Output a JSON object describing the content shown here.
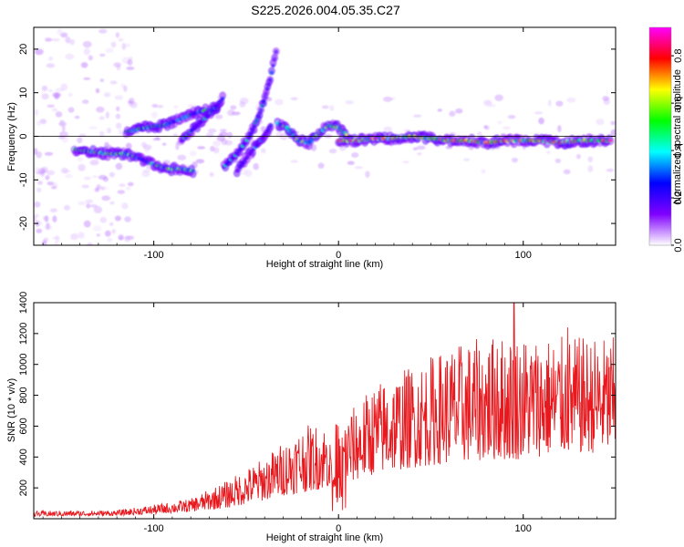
{
  "figure": {
    "title": "S225.2026.004.05.35.C27"
  },
  "chart_data": [
    {
      "type": "heatmap",
      "xlabel": "Height of straight line (km)",
      "ylabel": "Frequency (Hz)",
      "xlim": [
        -165,
        150
      ],
      "ylim": [
        -25,
        25
      ],
      "xticks": [
        -100,
        0,
        100
      ],
      "yticks": [
        -20,
        -10,
        0,
        10,
        20
      ],
      "xtick_labels": [
        "-100",
        "0",
        "100"
      ],
      "ytick_labels": [
        "-20",
        "-10",
        "0",
        "10",
        "20"
      ],
      "colorbar": {
        "label": "Normalized spectral amplitude",
        "range": [
          0,
          0.92
        ],
        "ticks": [
          0.0,
          0.2,
          0.4,
          0.6,
          0.8
        ],
        "tick_labels": [
          "0.0",
          "0.2",
          "0.4",
          "0.6",
          "0.8"
        ],
        "colormap": [
          "#ffffff",
          "#8000ff",
          "#0000ff",
          "#00ffff",
          "#00ff00",
          "#ffff00",
          "#ff0000",
          "#ff00ff"
        ]
      },
      "ridges": [
        {
          "x": [
            -143,
            -135,
            -125,
            -115,
            -108,
            -100,
            -92,
            -85,
            -78
          ],
          "y": [
            -3,
            -3.5,
            -4,
            -4,
            -5,
            -6.5,
            -7.5,
            -7.5,
            -8
          ],
          "intensity": 0.45
        },
        {
          "x": [
            -115,
            -105,
            -95,
            -88,
            -80,
            -72,
            -65
          ],
          "y": [
            1,
            2,
            2.5,
            3.5,
            5,
            6,
            6.5
          ],
          "intensity": 0.4
        },
        {
          "x": [
            -85,
            -78,
            -70,
            -62
          ],
          "y": [
            -1,
            2,
            5,
            9
          ],
          "intensity": 0.3
        },
        {
          "x": [
            -62,
            -55,
            -48,
            -42,
            -37,
            -33
          ],
          "y": [
            -7,
            -4,
            0,
            6,
            13,
            21
          ],
          "intensity": 0.3
        },
        {
          "x": [
            -55,
            -48,
            -42,
            -36
          ],
          "y": [
            -8,
            -4,
            -1,
            3
          ],
          "intensity": 0.25
        },
        {
          "x": [
            -33,
            -28,
            -22,
            -16,
            -10,
            -5,
            0,
            5
          ],
          "y": [
            3,
            2,
            -1,
            -1.5,
            1,
            2.5,
            2,
            0
          ],
          "intensity": 0.5
        },
        {
          "x": [
            0,
            10,
            20,
            30,
            40,
            50,
            60,
            70,
            80,
            90,
            100,
            110,
            120,
            130,
            140,
            148
          ],
          "y": [
            -1,
            -1,
            -0.5,
            -0.5,
            0,
            -0.5,
            -1,
            -1,
            -1.5,
            -1,
            -1,
            -1,
            -1.5,
            -1,
            -1,
            -1
          ],
          "intensity": 0.75
        }
      ]
    },
    {
      "type": "line",
      "xlabel": "Height of straight line (km)",
      "ylabel": "SNR (10 * v/v)",
      "xlim": [
        -165,
        150
      ],
      "ylim": [
        0,
        1400
      ],
      "xticks": [
        -100,
        0,
        100
      ],
      "yticks": [
        200,
        400,
        600,
        800,
        1000,
        1200,
        1400
      ],
      "xtick_labels": [
        "-100",
        "0",
        "100"
      ],
      "ytick_labels": [
        "200",
        "400",
        "600",
        "800",
        "1000",
        "1200",
        "1400"
      ],
      "series": [
        {
          "color": "#e8191e",
          "envelope": {
            "x": [
              -165,
              -120,
              -100,
              -80,
              -60,
              -40,
              -30,
              -20,
              -10,
              0,
              20,
              40,
              60,
              80,
              95,
              120,
              150
            ],
            "base": [
              15,
              20,
              30,
              45,
              70,
              120,
              150,
              170,
              190,
              210,
              290,
              330,
              360,
              380,
              380,
              420,
              430
            ],
            "peak": [
              50,
              55,
              90,
              130,
              250,
              400,
              500,
              600,
              620,
              620,
              880,
              1000,
              1120,
              1180,
              1200,
              1180,
              1180
            ]
          },
          "peak_points": [
            {
              "x": 95,
              "y": 1400
            },
            {
              "x": 86,
              "y": 1100
            },
            {
              "x": 124,
              "y": 1240
            }
          ]
        }
      ]
    }
  ]
}
